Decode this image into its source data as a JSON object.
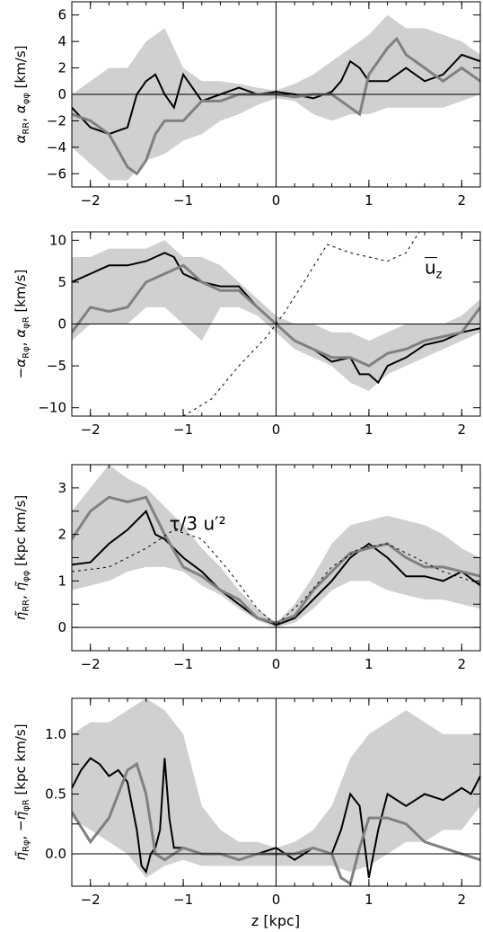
{
  "figure": {
    "xlabel": "z  [kpc]"
  },
  "colors": {
    "band": "#d0d0d0",
    "black_line": "#000000",
    "gray_line": "#808080",
    "dashed": "#000000",
    "axis": "#000000"
  },
  "chart_data": [
    {
      "type": "line",
      "ylabel_parts": [
        "α",
        "RR",
        ", ",
        "α",
        "φφ",
        "  [km/s]"
      ],
      "xlim": [
        -2.2,
        2.2
      ],
      "ylim": [
        -7,
        7
      ],
      "xticks": [
        -2,
        -1,
        0,
        1,
        2
      ],
      "xtick_labels": [
        "−2",
        "−1",
        "0",
        "1",
        "2"
      ],
      "yticks": [
        -6,
        -4,
        -2,
        0,
        2,
        4,
        6
      ],
      "ytick_labels": [
        "−6",
        "−4",
        "−2",
        "0",
        "2",
        "4",
        "6"
      ],
      "annotations": [],
      "series": [
        {
          "style": "band",
          "x": [
            -2.2,
            -1.8,
            -1.6,
            -1.4,
            -1.2,
            -1.0,
            -0.8,
            -0.6,
            -0.4,
            -0.2,
            0,
            0.2,
            0.4,
            0.6,
            0.8,
            1.0,
            1.2,
            1.4,
            1.6,
            1.8,
            2.0,
            2.2
          ],
          "lo": [
            -4,
            -6.5,
            -6.5,
            -5,
            -4.5,
            -3.5,
            -3,
            -2,
            -1.5,
            -0.8,
            -0.3,
            -0.5,
            -1.5,
            -2,
            -1.5,
            -1.5,
            -1,
            -1,
            -1,
            -1,
            -0.5,
            0
          ],
          "hi": [
            0,
            2,
            2,
            4,
            5,
            2,
            1,
            1,
            0.8,
            0.5,
            0.3,
            0.8,
            1.5,
            2.5,
            3.5,
            4.5,
            6,
            5,
            5,
            4.5,
            4,
            3
          ]
        },
        {
          "style": "black",
          "x": [
            -2.2,
            -2.0,
            -1.8,
            -1.6,
            -1.5,
            -1.4,
            -1.3,
            -1.2,
            -1.1,
            -1.0,
            -0.9,
            -0.8,
            -0.6,
            -0.4,
            -0.2,
            0,
            0.2,
            0.4,
            0.6,
            0.7,
            0.8,
            0.9,
            1.0,
            1.2,
            1.4,
            1.6,
            1.8,
            2.0,
            2.2
          ],
          "y": [
            -1,
            -2.5,
            -3,
            -2.5,
            0,
            1,
            1.5,
            0,
            -1,
            1.5,
            0.5,
            -0.5,
            0,
            0.5,
            0,
            0.2,
            0,
            -0.3,
            0.2,
            1,
            2.5,
            2,
            1,
            1,
            2,
            1,
            1.5,
            3,
            2.5
          ]
        },
        {
          "style": "gray",
          "x": [
            -2.2,
            -2.0,
            -1.8,
            -1.6,
            -1.5,
            -1.4,
            -1.3,
            -1.2,
            -1.0,
            -0.8,
            -0.6,
            -0.4,
            -0.2,
            0,
            0.2,
            0.4,
            0.6,
            0.8,
            0.9,
            1.0,
            1.2,
            1.3,
            1.4,
            1.6,
            1.8,
            2.0,
            2.2
          ],
          "y": [
            -1.5,
            -2,
            -3,
            -5.5,
            -6,
            -5,
            -3,
            -2,
            -2,
            -0.5,
            -0.5,
            0,
            0,
            0,
            -0.2,
            0,
            0,
            -1,
            -1.5,
            1.5,
            3.5,
            4.2,
            3,
            2,
            1,
            2,
            1
          ]
        }
      ]
    },
    {
      "type": "line",
      "ylabel_parts": [
        "−α",
        "Rφ",
        ", ",
        "α",
        "φR",
        "  [km/s]"
      ],
      "xlim": [
        -2.2,
        2.2
      ],
      "ylim": [
        -11,
        11
      ],
      "xticks": [
        -2,
        -1,
        0,
        1,
        2
      ],
      "xtick_labels": [
        "−2",
        "−1",
        "0",
        "1",
        "2"
      ],
      "yticks": [
        -10,
        -5,
        0,
        5,
        10
      ],
      "ytick_labels": [
        "−10",
        "−5",
        "0",
        "5",
        "10"
      ],
      "annotations": [
        {
          "label": "u",
          "sub": "z",
          "overline": true,
          "x": 1.6,
          "y": 6
        }
      ],
      "series": [
        {
          "style": "band",
          "x": [
            -2.2,
            -2.0,
            -1.8,
            -1.6,
            -1.4,
            -1.2,
            -1.0,
            -0.8,
            -0.6,
            -0.4,
            -0.2,
            0,
            0.2,
            0.4,
            0.6,
            0.8,
            1.0,
            1.2,
            1.4,
            1.6,
            1.8,
            2.0,
            2.2
          ],
          "lo": [
            -2,
            0,
            0,
            0,
            2,
            2,
            0,
            -2,
            2,
            2,
            1,
            -1,
            -3,
            -4,
            -5,
            -7,
            -8,
            -6,
            -5,
            -4,
            -3,
            -2,
            -1
          ],
          "hi": [
            8,
            8,
            9,
            9,
            9,
            10,
            8,
            8,
            7,
            5,
            3,
            1,
            0,
            0,
            -1,
            -1,
            -2,
            -1,
            0,
            0,
            0,
            1,
            3
          ]
        },
        {
          "style": "black",
          "x": [
            -2.2,
            -2.0,
            -1.8,
            -1.6,
            -1.4,
            -1.2,
            -1.1,
            -1.0,
            -0.8,
            -0.6,
            -0.4,
            -0.2,
            0,
            0.2,
            0.4,
            0.6,
            0.8,
            0.9,
            1.0,
            1.1,
            1.2,
            1.4,
            1.6,
            1.8,
            2.0,
            2.2
          ],
          "y": [
            5,
            6,
            7,
            7,
            7.5,
            8.5,
            8,
            6,
            5,
            4.5,
            4.5,
            2,
            0,
            -2,
            -3,
            -4.5,
            -4,
            -6,
            -6,
            -7,
            -5,
            -4,
            -2.5,
            -2,
            -1,
            -0.5
          ]
        },
        {
          "style": "gray",
          "x": [
            -2.2,
            -2.0,
            -1.8,
            -1.6,
            -1.4,
            -1.2,
            -1.0,
            -0.8,
            -0.6,
            -0.4,
            -0.2,
            0,
            0.2,
            0.4,
            0.6,
            0.8,
            1.0,
            1.2,
            1.4,
            1.6,
            1.8,
            2.0,
            2.2
          ],
          "y": [
            -1,
            2,
            1.5,
            2,
            5,
            6,
            7,
            5,
            4,
            4,
            2,
            0,
            -2,
            -3,
            -4,
            -4,
            -5,
            -3.5,
            -3,
            -2,
            -1.5,
            -1,
            2
          ]
        },
        {
          "style": "dashed",
          "x": [
            -1.0,
            -0.7,
            -0.4,
            -0.1,
            0,
            0.1,
            0.3,
            0.55,
            0.8,
            1.0,
            1.2,
            1.4,
            1.6
          ],
          "y": [
            -11,
            -9,
            -5,
            -1.5,
            0,
            1.5,
            5,
            9.5,
            8.5,
            8,
            7.5,
            8.5,
            12
          ]
        }
      ]
    },
    {
      "type": "line",
      "ylabel_parts": [
        "η̃",
        "RR",
        ", ",
        "η̃",
        "φφ",
        "  [kpc km/s]"
      ],
      "xlim": [
        -2.2,
        2.2
      ],
      "ylim": [
        -0.5,
        3.5
      ],
      "xticks": [
        -2,
        -1,
        0,
        1,
        2
      ],
      "xtick_labels": [
        "−2",
        "−1",
        "0",
        "1",
        "2"
      ],
      "yticks": [
        0,
        0.5,
        1,
        1.5,
        2,
        2.5,
        3
      ],
      "ytick_labels": [
        "0",
        "",
        "1",
        "",
        "2",
        "",
        "3"
      ],
      "annotations": [
        {
          "label": "τ/3  u′²",
          "x": -1.15,
          "y": 2.1
        }
      ],
      "series": [
        {
          "style": "band",
          "x": [
            -2.2,
            -2.0,
            -1.8,
            -1.6,
            -1.4,
            -1.2,
            -1.0,
            -0.8,
            -0.6,
            -0.4,
            -0.2,
            0,
            0.2,
            0.4,
            0.6,
            0.8,
            1.0,
            1.2,
            1.4,
            1.6,
            1.8,
            2.0,
            2.2
          ],
          "lo": [
            0.8,
            0.9,
            1.0,
            1.2,
            1.3,
            1.3,
            1.2,
            0.9,
            0.7,
            0.4,
            0.15,
            0,
            0.1,
            0.4,
            0.8,
            1.0,
            1.0,
            0.8,
            0.7,
            0.6,
            0.6,
            0.5,
            0.4
          ],
          "hi": [
            2.5,
            3,
            3.5,
            3.2,
            3,
            2.6,
            2.2,
            1.7,
            1.3,
            0.8,
            0.4,
            0.1,
            0.5,
            1.1,
            1.8,
            2.2,
            2.3,
            2.4,
            2.3,
            2.2,
            2.0,
            1.7,
            1.5
          ]
        },
        {
          "style": "black",
          "x": [
            -2.2,
            -2.0,
            -1.8,
            -1.6,
            -1.4,
            -1.3,
            -1.2,
            -1.0,
            -0.8,
            -0.6,
            -0.4,
            -0.2,
            -0.05,
            0,
            0.2,
            0.4,
            0.6,
            0.8,
            1.0,
            1.2,
            1.4,
            1.6,
            1.8,
            2.0,
            2.2
          ],
          "y": [
            1.35,
            1.4,
            1.8,
            2.1,
            2.5,
            2.0,
            1.9,
            1.5,
            1.2,
            0.8,
            0.5,
            0.2,
            0.1,
            0.05,
            0.2,
            0.6,
            1.0,
            1.5,
            1.8,
            1.5,
            1.1,
            1.1,
            1.0,
            1.2,
            0.9
          ]
        },
        {
          "style": "gray",
          "x": [
            -2.2,
            -2.0,
            -1.8,
            -1.6,
            -1.4,
            -1.2,
            -1.0,
            -0.8,
            -0.6,
            -0.4,
            -0.2,
            0,
            0.2,
            0.4,
            0.6,
            0.8,
            1.0,
            1.2,
            1.4,
            1.6,
            1.8,
            2.0,
            2.2
          ],
          "y": [
            1.9,
            2.5,
            2.8,
            2.7,
            2.8,
            2.0,
            1.3,
            1.1,
            0.8,
            0.6,
            0.2,
            0.1,
            0.25,
            0.8,
            1.2,
            1.6,
            1.7,
            1.8,
            1.5,
            1.3,
            1.3,
            1.2,
            1.1
          ]
        },
        {
          "style": "dashed",
          "x": [
            -2.2,
            -1.8,
            -1.4,
            -1.1,
            -0.8,
            -0.5,
            -0.2,
            0,
            0.3,
            0.6,
            0.9,
            1.2,
            1.5,
            1.8,
            2.1,
            2.2
          ],
          "y": [
            1.2,
            1.3,
            1.7,
            2.1,
            1.9,
            1.2,
            0.4,
            0.05,
            0.6,
            1.3,
            1.7,
            1.8,
            1.5,
            1.2,
            1.0,
            0.95
          ]
        }
      ]
    },
    {
      "type": "line",
      "ylabel_parts": [
        "η̃",
        "Rφ",
        ", −",
        "η̃",
        "φR",
        "  [kpc km/s]"
      ],
      "xlim": [
        -2.2,
        2.2
      ],
      "ylim": [
        -0.27,
        1.3
      ],
      "xticks": [
        -2,
        -1,
        0,
        1,
        2
      ],
      "xtick_labels": [
        "−2",
        "−1",
        "0",
        "1",
        "2"
      ],
      "yticks": [
        0,
        0.25,
        0.5,
        0.75,
        1.0
      ],
      "ytick_labels": [
        "0.0",
        "",
        "0.5",
        "",
        "1.0"
      ],
      "annotations": [],
      "series": [
        {
          "style": "band",
          "x": [
            -2.2,
            -2.0,
            -1.8,
            -1.6,
            -1.4,
            -1.2,
            -1.0,
            -0.8,
            -0.6,
            -0.4,
            -0.2,
            0,
            0.2,
            0.4,
            0.6,
            0.8,
            1.0,
            1.2,
            1.4,
            1.6,
            1.8,
            2.0,
            2.2
          ],
          "lo": [
            0.3,
            0.2,
            0.1,
            0,
            -0.2,
            -0.1,
            -0.05,
            -0.1,
            -0.1,
            -0.1,
            -0.1,
            -0.1,
            -0.1,
            -0.1,
            -0.1,
            -0.15,
            -0.1,
            0,
            0.1,
            0.1,
            0.2,
            0.2,
            0.4
          ],
          "hi": [
            1.0,
            1.1,
            1.1,
            1.2,
            1.3,
            1.2,
            1.0,
            0.4,
            0.2,
            0.1,
            0.1,
            0.05,
            0.1,
            0.2,
            0.4,
            0.8,
            1.0,
            1.1,
            1.2,
            1.1,
            1.0,
            1.0,
            1.0
          ]
        },
        {
          "style": "black",
          "x": [
            -2.2,
            -2.1,
            -2.0,
            -1.9,
            -1.8,
            -1.7,
            -1.6,
            -1.5,
            -1.45,
            -1.4,
            -1.35,
            -1.3,
            -1.25,
            -1.2,
            -1.15,
            -1.1,
            -1.0,
            -0.8,
            -0.6,
            -0.4,
            -0.2,
            0,
            0.2,
            0.4,
            0.6,
            0.7,
            0.8,
            0.9,
            1.0,
            1.1,
            1.2,
            1.4,
            1.6,
            1.8,
            2.0,
            2.1,
            2.2
          ],
          "y": [
            0.55,
            0.7,
            0.8,
            0.75,
            0.65,
            0.7,
            0.6,
            0.2,
            -0.1,
            -0.15,
            0,
            0.05,
            0.2,
            0.8,
            0.3,
            0.05,
            0.05,
            0.0,
            0.0,
            -0.05,
            0.0,
            0.05,
            -0.05,
            0.05,
            0.0,
            0.2,
            0.5,
            0.4,
            -0.2,
            0.2,
            0.5,
            0.4,
            0.5,
            0.45,
            0.55,
            0.5,
            0.65
          ]
        },
        {
          "style": "gray",
          "x": [
            -2.2,
            -2.0,
            -1.8,
            -1.6,
            -1.5,
            -1.4,
            -1.3,
            -1.2,
            -1.0,
            -0.8,
            -0.6,
            -0.4,
            -0.2,
            0,
            0.2,
            0.4,
            0.6,
            0.7,
            0.8,
            0.9,
            1.0,
            1.2,
            1.4,
            1.6,
            1.8,
            2.0,
            2.2
          ],
          "y": [
            0.35,
            0.1,
            0.3,
            0.7,
            0.75,
            0.5,
            0.0,
            -0.05,
            0.05,
            0.0,
            0.0,
            -0.05,
            0.0,
            0.0,
            0.0,
            0.05,
            0.0,
            -0.2,
            -0.25,
            0.05,
            0.3,
            0.3,
            0.25,
            0.1,
            0.05,
            0.0,
            -0.05
          ]
        }
      ]
    }
  ]
}
